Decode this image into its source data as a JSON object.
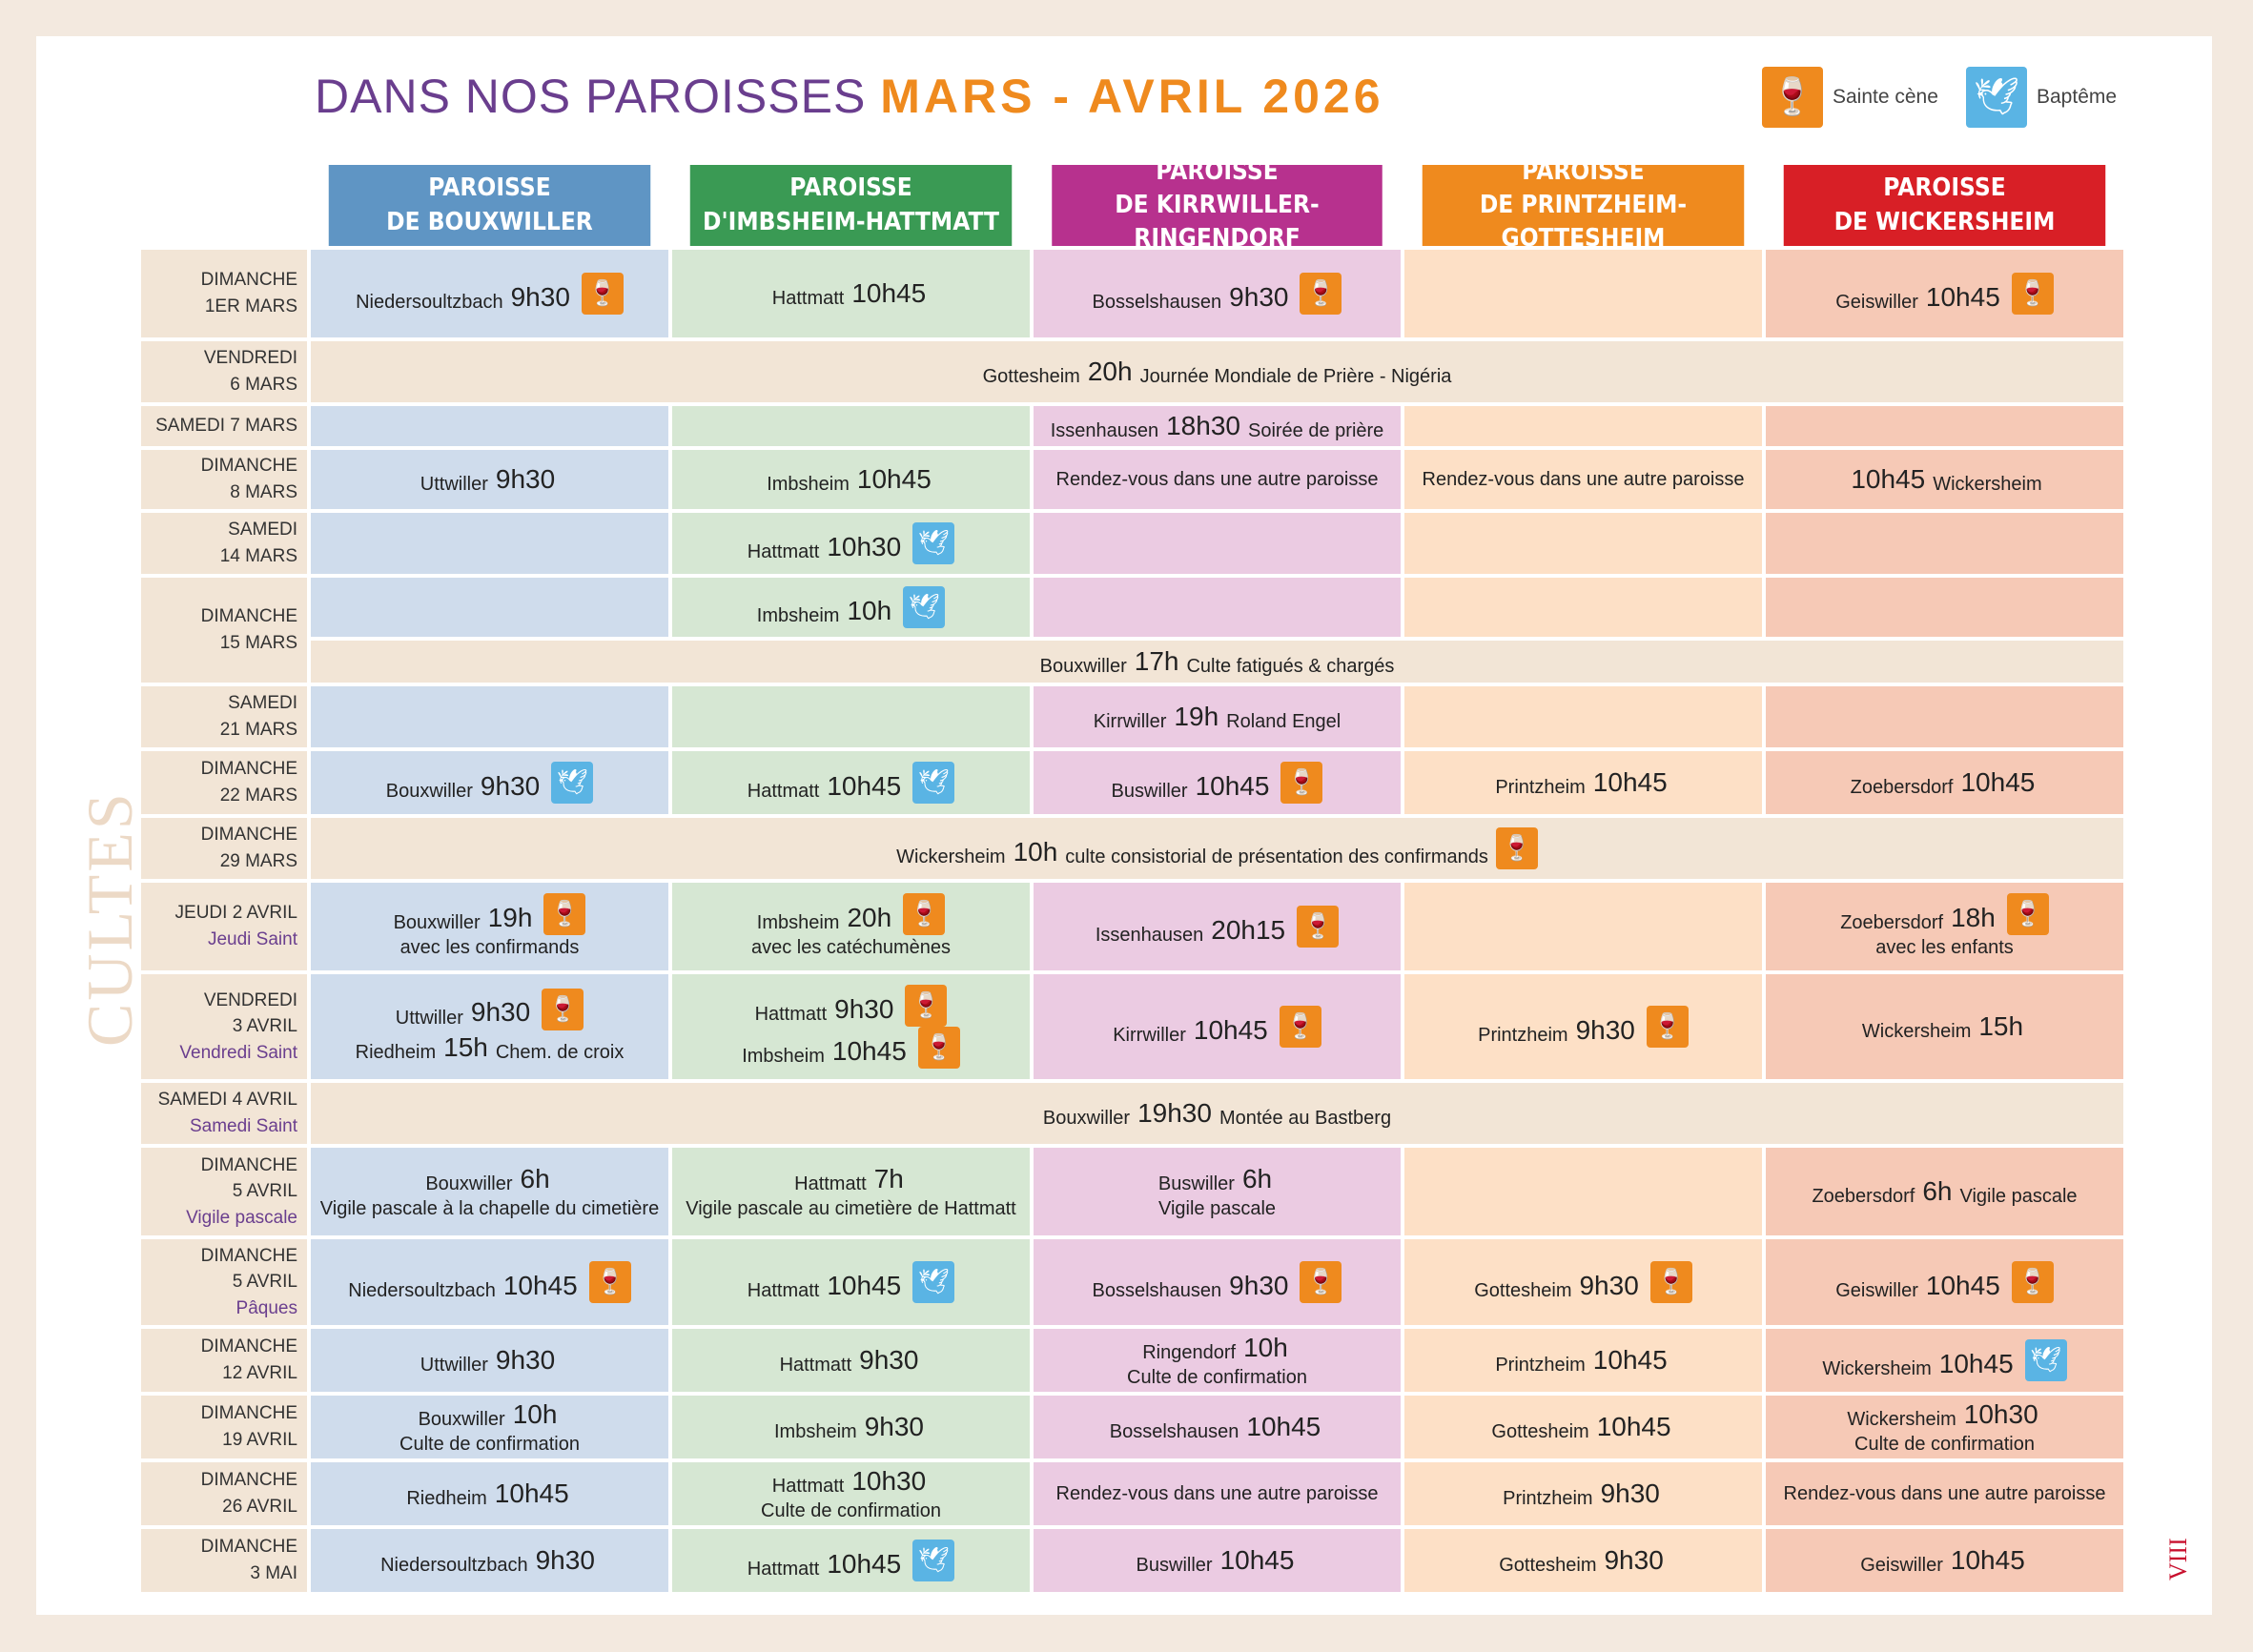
{
  "title": {
    "prefix": "DANS NOS PAROISSES",
    "period": "MARS - AVRIL 2026"
  },
  "legend": [
    {
      "icon": "chalice-icon",
      "label": "Sainte cène",
      "color": "#ef8a1e"
    },
    {
      "icon": "baptism-icon",
      "label": "Baptême",
      "color": "#5ab4e4"
    }
  ],
  "side_label": "CULTES",
  "page_number": "VIII",
  "colors": {
    "bouxwiller": "#5f95c4",
    "imbsheim": "#3a9a54",
    "kirrwiller": "#b7318e",
    "printzheim": "#ef8a1e",
    "wickersheim": "#d81f26"
  },
  "parishes": [
    {
      "label": "PAROISSE\nDE BOUXWILLER"
    },
    {
      "label": "PAROISSE\nD'IMBSHEIM-HATTMATT"
    },
    {
      "label": "PAROISSE\nDE KIRRWILLER-RINGENDORF"
    },
    {
      "label": "PAROISSE\nDE PRINTZHEIM-GOTTESHEIM"
    },
    {
      "label": "PAROISSE\nDE WICKERSHEIM"
    }
  ],
  "rows": [
    {
      "date": [
        "DIMANCHE",
        "1ER MARS"
      ],
      "cells": [
        {
          "lines": [
            {
              "place": "Niedersoultzbach",
              "time": "9h30",
              "icon": "sc"
            }
          ]
        },
        {
          "lines": [
            {
              "place": "Hattmatt",
              "time": "10h45"
            }
          ]
        },
        {
          "lines": [
            {
              "place": "Bosselshausen",
              "time": "9h30",
              "icon": "sc"
            }
          ]
        },
        {
          "lines": []
        },
        {
          "lines": [
            {
              "place": "Geiswiller",
              "time": "10h45",
              "icon": "sc"
            }
          ]
        }
      ]
    },
    {
      "date": [
        "VENDREDI",
        "6 MARS"
      ],
      "span": {
        "place": "Gottesheim",
        "time": "20h",
        "note": "Journée Mondiale de Prière - Nigéria"
      }
    },
    {
      "date": [
        "SAMEDI 7 MARS"
      ],
      "cells": [
        {
          "lines": []
        },
        {
          "lines": []
        },
        {
          "lines": [
            {
              "place": "Issenhausen",
              "time": "18h30",
              "note": "Soirée de prière"
            }
          ]
        },
        {
          "lines": []
        },
        {
          "lines": []
        }
      ]
    },
    {
      "date": [
        "DIMANCHE",
        "8 MARS"
      ],
      "cells": [
        {
          "lines": [
            {
              "place": "Uttwiller",
              "time": "9h30"
            }
          ]
        },
        {
          "lines": [
            {
              "place": "Imbsheim",
              "time": "10h45"
            }
          ]
        },
        {
          "lines": [
            {
              "place": "Rendez-vous dans une autre paroisse"
            }
          ]
        },
        {
          "lines": [
            {
              "place": "Rendez-vous dans une autre paroisse"
            }
          ]
        },
        {
          "lines": [
            {
              "time": "10h45",
              "note": "Wickersheim"
            }
          ]
        }
      ]
    },
    {
      "date": [
        "SAMEDI",
        "14 MARS"
      ],
      "cells": [
        {
          "lines": []
        },
        {
          "lines": [
            {
              "place": "Hattmatt",
              "time": "10h30",
              "icon": "bp"
            }
          ]
        },
        {
          "lines": []
        },
        {
          "lines": []
        },
        {
          "lines": []
        }
      ]
    },
    {
      "date": [
        "DIMANCHE",
        "15 MARS"
      ],
      "cells": [
        {
          "lines": []
        },
        {
          "lines": [
            {
              "place": "Imbsheim",
              "time": "10h",
              "icon": "bp"
            }
          ]
        },
        {
          "lines": []
        },
        {
          "lines": []
        },
        {
          "lines": []
        }
      ]
    },
    {
      "date": [],
      "span": {
        "place": "Bouxwiller",
        "time": "17h",
        "note": "Culte fatigués & chargés"
      }
    },
    {
      "date": [
        "SAMEDI",
        "21 MARS"
      ],
      "cells": [
        {
          "lines": []
        },
        {
          "lines": []
        },
        {
          "lines": [
            {
              "place": "Kirrwiller",
              "time": "19h",
              "note": "Roland Engel"
            }
          ]
        },
        {
          "lines": []
        },
        {
          "lines": []
        }
      ]
    },
    {
      "date": [
        "DIMANCHE",
        "22 MARS"
      ],
      "cells": [
        {
          "lines": [
            {
              "place": "Bouxwiller",
              "time": "9h30",
              "icon": "bp"
            }
          ]
        },
        {
          "lines": [
            {
              "place": "Hattmatt",
              "time": "10h45",
              "icon": "bp"
            }
          ]
        },
        {
          "lines": [
            {
              "place": "Buswiller",
              "time": "10h45",
              "icon": "sc"
            }
          ]
        },
        {
          "lines": [
            {
              "place": "Printzheim",
              "time": "10h45"
            }
          ]
        },
        {
          "lines": [
            {
              "place": "Zoebersdorf",
              "time": "10h45"
            }
          ]
        }
      ]
    },
    {
      "date": [
        "DIMANCHE",
        "29 MARS"
      ],
      "span": {
        "place": "Wickersheim",
        "time": "10h",
        "note": "culte consistorial de présentation des confirmands",
        "icon": "sc"
      }
    },
    {
      "date": [
        "JEUDI 2 AVRIL",
        "Jeudi Saint"
      ],
      "cells": [
        {
          "lines": [
            {
              "place": "Bouxwiller",
              "time": "19h",
              "icon": "sc"
            },
            {
              "place": "avec les confirmands"
            }
          ]
        },
        {
          "lines": [
            {
              "place": "Imbsheim",
              "time": "20h",
              "icon": "sc"
            },
            {
              "place": "avec les catéchumènes"
            }
          ]
        },
        {
          "lines": [
            {
              "place": "Issenhausen",
              "time": "20h15",
              "icon": "sc"
            }
          ]
        },
        {
          "lines": []
        },
        {
          "lines": [
            {
              "place": "Zoebersdorf",
              "time": "18h",
              "icon": "sc"
            },
            {
              "place": "avec les enfants"
            }
          ]
        }
      ]
    },
    {
      "date": [
        "VENDREDI",
        "3 AVRIL",
        "Vendredi Saint"
      ],
      "cells": [
        {
          "lines": [
            {
              "place": "Uttwiller",
              "time": "9h30",
              "icon": "sc"
            },
            {
              "place": "Riedheim",
              "time": "15h",
              "note": "Chem. de croix"
            }
          ]
        },
        {
          "lines": [
            {
              "place": "Hattmatt",
              "time": "9h30",
              "icon": "sc"
            },
            {
              "place": "Imbsheim",
              "time": "10h45",
              "icon": "sc"
            }
          ]
        },
        {
          "lines": [
            {
              "place": "Kirrwiller",
              "time": "10h45",
              "icon": "sc"
            }
          ]
        },
        {
          "lines": [
            {
              "place": "Printzheim",
              "time": "9h30",
              "icon": "sc"
            }
          ]
        },
        {
          "lines": [
            {
              "place": "Wickersheim",
              "time": "15h"
            }
          ]
        }
      ]
    },
    {
      "date": [
        "SAMEDI 4 AVRIL",
        "Samedi Saint"
      ],
      "span": {
        "place": "Bouxwiller",
        "time": "19h30",
        "note": "Montée au Bastberg"
      }
    },
    {
      "date": [
        "DIMANCHE",
        "5 AVRIL",
        "Vigile pascale"
      ],
      "cells": [
        {
          "lines": [
            {
              "place": "Bouxwiller",
              "time": "6h"
            },
            {
              "place": "Vigile pascale à la chapelle du cimetière"
            }
          ]
        },
        {
          "lines": [
            {
              "place": "Hattmatt",
              "time": "7h"
            },
            {
              "place": "Vigile pascale au cimetière de Hattmatt"
            }
          ]
        },
        {
          "lines": [
            {
              "place": "Buswiller",
              "time": "6h"
            },
            {
              "place": "Vigile pascale"
            }
          ]
        },
        {
          "lines": []
        },
        {
          "lines": [
            {
              "place": "Zoebersdorf",
              "time": "6h",
              "note": "Vigile pascale"
            }
          ]
        }
      ]
    },
    {
      "date": [
        "DIMANCHE",
        "5 AVRIL",
        "Pâques"
      ],
      "cells": [
        {
          "lines": [
            {
              "place": "Niedersoultzbach",
              "time": "10h45",
              "icon": "sc"
            }
          ]
        },
        {
          "lines": [
            {
              "place": "Hattmatt",
              "time": "10h45",
              "icon": "bp"
            }
          ]
        },
        {
          "lines": [
            {
              "place": "Bosselshausen",
              "time": "9h30",
              "icon": "sc"
            }
          ]
        },
        {
          "lines": [
            {
              "place": "Gottesheim",
              "time": "9h30",
              "icon": "sc"
            }
          ]
        },
        {
          "lines": [
            {
              "place": "Geiswiller",
              "time": "10h45",
              "icon": "sc"
            }
          ]
        }
      ]
    },
    {
      "date": [
        "DIMANCHE",
        "12 AVRIL"
      ],
      "cells": [
        {
          "lines": [
            {
              "place": "Uttwiller",
              "time": "9h30"
            }
          ]
        },
        {
          "lines": [
            {
              "place": "Hattmatt",
              "time": "9h30"
            }
          ]
        },
        {
          "lines": [
            {
              "place": "Ringendorf",
              "time": "10h"
            },
            {
              "place": "Culte de confirmation"
            }
          ]
        },
        {
          "lines": [
            {
              "place": "Printzheim",
              "time": "10h45"
            }
          ]
        },
        {
          "lines": [
            {
              "place": "Wickersheim",
              "time": "10h45",
              "icon": "bp"
            }
          ]
        }
      ]
    },
    {
      "date": [
        "DIMANCHE",
        "19 AVRIL"
      ],
      "cells": [
        {
          "lines": [
            {
              "place": "Bouxwiller",
              "time": "10h"
            },
            {
              "place": "Culte de confirmation"
            }
          ]
        },
        {
          "lines": [
            {
              "place": "Imbsheim",
              "time": "9h30"
            }
          ]
        },
        {
          "lines": [
            {
              "place": "Bosselshausen",
              "time": "10h45"
            }
          ]
        },
        {
          "lines": [
            {
              "place": "Gottesheim",
              "time": "10h45"
            }
          ]
        },
        {
          "lines": [
            {
              "place": "Wickersheim",
              "time": "10h30"
            },
            {
              "place": "Culte de confirmation"
            }
          ]
        }
      ]
    },
    {
      "date": [
        "DIMANCHE",
        "26 AVRIL"
      ],
      "cells": [
        {
          "lines": [
            {
              "place": "Riedheim",
              "time": "10h45"
            }
          ]
        },
        {
          "lines": [
            {
              "place": "Hattmatt",
              "time": "10h30"
            },
            {
              "place": "Culte de confirmation"
            }
          ]
        },
        {
          "lines": [
            {
              "place": "Rendez-vous dans une autre paroisse"
            }
          ]
        },
        {
          "lines": [
            {
              "place": "Printzheim",
              "time": "9h30"
            }
          ]
        },
        {
          "lines": [
            {
              "place": "Rendez-vous dans une autre paroisse"
            }
          ]
        }
      ]
    },
    {
      "date": [
        "DIMANCHE",
        "3 MAI"
      ],
      "cells": [
        {
          "lines": [
            {
              "place": "Niedersoultzbach",
              "time": "9h30"
            }
          ]
        },
        {
          "lines": [
            {
              "place": "Hattmatt",
              "time": "10h45",
              "icon": "bp"
            }
          ]
        },
        {
          "lines": [
            {
              "place": "Buswiller",
              "time": "10h45"
            }
          ]
        },
        {
          "lines": [
            {
              "place": "Gottesheim",
              "time": "9h30"
            }
          ]
        },
        {
          "lines": [
            {
              "place": "Geiswiller",
              "time": "10h45"
            }
          ]
        }
      ]
    }
  ]
}
